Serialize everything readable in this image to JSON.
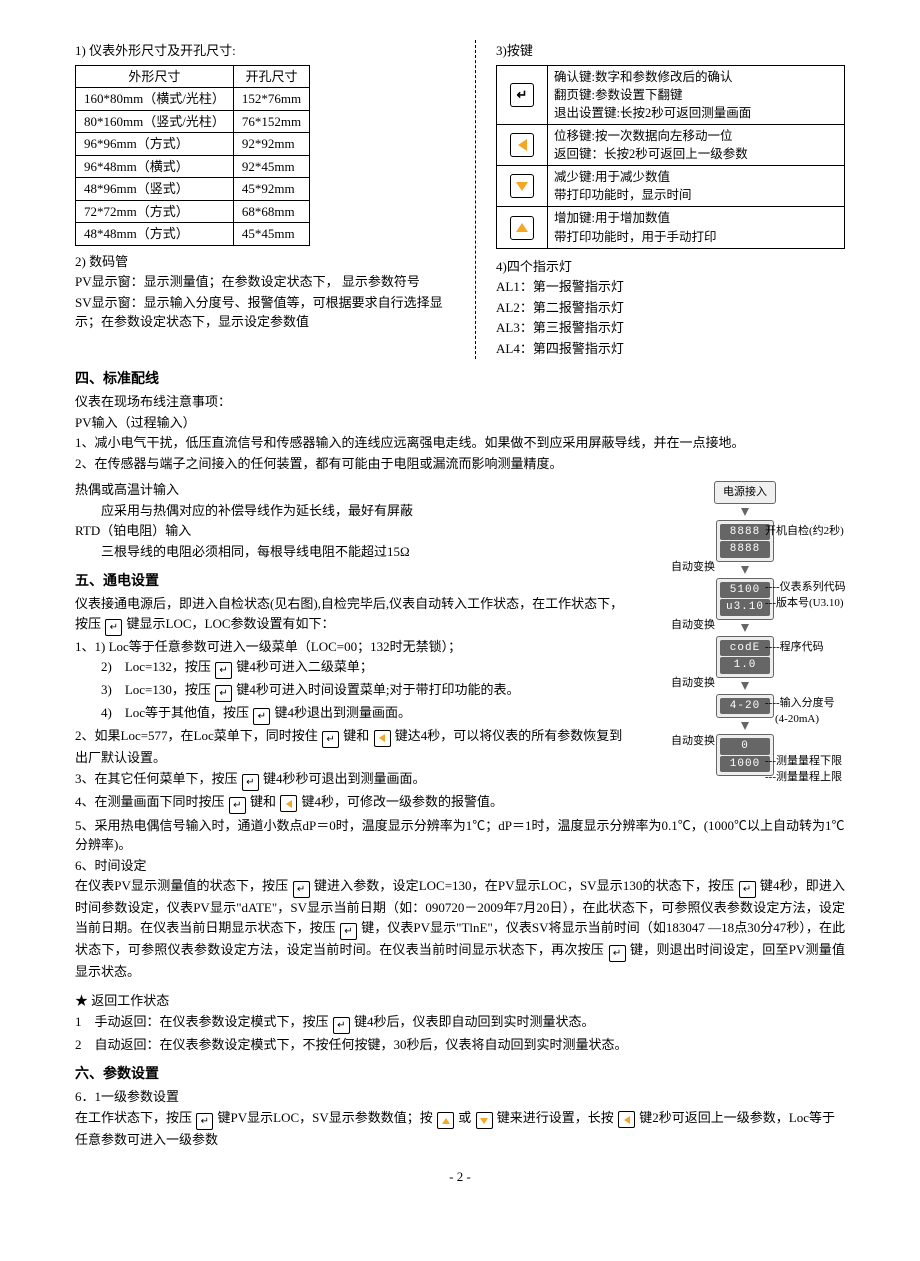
{
  "section1": {
    "title": "1) 仪表外形尺寸及开孔尺寸:",
    "table": {
      "headers": [
        "外形尺寸",
        "开孔尺寸"
      ],
      "rows": [
        [
          "160*80mm（横式/光柱）",
          "152*76mm"
        ],
        [
          "80*160mm（竖式/光柱）",
          "76*152mm"
        ],
        [
          "96*96mm（方式）",
          "92*92mm"
        ],
        [
          "96*48mm（横式）",
          "92*45mm"
        ],
        [
          "48*96mm（竖式）",
          "45*92mm"
        ],
        [
          "72*72mm（方式）",
          "68*68mm"
        ],
        [
          "48*48mm（方式）",
          "45*45mm"
        ]
      ]
    }
  },
  "section2": {
    "title": "2) 数码管",
    "pv": "PV显示窗：显示测量值；在参数设定状态下， 显示参数符号",
    "sv": "SV显示窗：显示输入分度号、报警值等，可根据要求自行选择显示；在参数设定状态下，显示设定参数值"
  },
  "section3": {
    "title": "3)按键",
    "keys": [
      {
        "icon": "enter",
        "desc": "确认键:数字和参数修改后的确认\n翻页键:参数设置下翻键\n退出设置键:长按2秒可返回测量画面"
      },
      {
        "icon": "left",
        "desc": "位移键:按一次数据向左移动一位\n返回键：长按2秒可返回上一级参数"
      },
      {
        "icon": "down",
        "desc": "减少键:用于减少数值\n带打印功能时，显示时间"
      },
      {
        "icon": "up",
        "desc": "增加键:用于增加数值\n带打印功能时，用于手动打印"
      }
    ]
  },
  "section4": {
    "title": "4)四个指示灯",
    "lines": [
      "AL1：第一报警指示灯",
      "AL2：第二报警指示灯",
      "AL3：第三报警指示灯",
      "AL4：第四报警指示灯"
    ]
  },
  "section5": {
    "title": "四、标准配线",
    "l1": "仪表在现场布线注意事项：",
    "l2": "PV输入（过程输入）",
    "l3": "1、减小电气干扰，低压直流信号和传感器输入的连线应远离强电走线。如果做不到应采用屏蔽导线，并在一点接地。",
    "l4": "2、在传感器与端子之间接入的任何装置，都有可能由于电阻或漏流而影响测量精度。",
    "l5": "热偶或高温计输入",
    "l6": "应采用与热偶对应的补偿导线作为延长线，最好有屏蔽",
    "l7": "RTD（铂电阻）输入",
    "l8": "三根导线的电阻必须相同，每根导线电阻不能超过15Ω"
  },
  "section6": {
    "title": "五、通电设置",
    "p1a": "仪表接通电源后，即进入自检状态(见右图),自检完毕后,仪表自动转入工作状态，在工作状态下，按压 ",
    "p1b": " 键显示LOC，LOC参数设置有如下：",
    "li1": "1、1) Loc等于任意参数可进入一级菜单（LOC=00；132时无禁锁）；",
    "li2a": "2)　Loc=132，按压 ",
    "li2b": " 键4秒可进入二级菜单；",
    "li3a": "3)　Loc=130，按压 ",
    "li3b": " 键4秒可进入时间设置菜单;对于带打印功能的表。",
    "li4a": "4)　Loc等于其他值，按压 ",
    "li4b": " 键4秒退出到测量画面。",
    "p2a": "2、如果Loc=577，在Loc菜单下，同时按住 ",
    "p2mid": " 键和 ",
    "p2b": " 键达4秒，可以将仪表的所有参数恢复到出厂默认设置。",
    "p3a": "3、在其它任何菜单下，按压 ",
    "p3b": " 键4秒秒可退出到测量画面。",
    "p4a": "4、在测量画面下同时按压 ",
    "p4mid": " 键和 ",
    "p4b": " 键4秒，可修改一级参数的报警值。",
    "p5": "5、采用热电偶信号输入时，通道小数点dP＝0时，温度显示分辨率为1℃；dP＝1时，温度显示分辨率为0.1℃，(1000℃以上自动转为1℃分辨率)。",
    "p6h": "6、时间设定",
    "p6a": "在仪表PV显示测量值的状态下，按压 ",
    "p6b": " 键进入参数，设定LOC=130，在PV显示LOC，SV显示130的状态下，按压 ",
    "p6c": " 键4秒，即进入时间参数设定，仪表PV显示\"dATE\"，SV显示当前日期（如：090720－2009年7月20日），在此状态下，可参照仪表参数设定方法，设定当前日期。在仪表当前日期显示状态下，按压 ",
    "p6d": " 键，仪表PV显示\"TlnE\"，仪表SV将显示当前时间（如183047 —18点30分47秒），在此状态下，可参照仪表参数设定方法，设定当前时间。在仪表当前时间显示状态下，再次按压 ",
    "p6e": " 键，则退出时间设定，回至PV测量值显示状态。",
    "starTitle": "★ 返回工作状态",
    "s1a": "1　手动返回：在仪表参数设定模式下，按压 ",
    "s1b": " 键4秒后，仪表即自动回到实时测量状态。",
    "s2": "2　自动返回：在仪表参数设定模式下，不按任何按键，30秒后，仪表将自动回到实时测量状态。"
  },
  "section7": {
    "title": "六、参数设置",
    "sub": "6．1一级参数设置",
    "p1a": "在工作状态下，按压 ",
    "p1b": " 键PV显示LOC，SV显示参数数值；按 ",
    "p1mid": " 或 ",
    "p1c": " 键来进行设置，长按 ",
    "p1d": " 键2秒可返回上一级参数，Loc等于任意参数可进入一级参数"
  },
  "flow": {
    "power": "电源接入",
    "d1": "8888",
    "d1b": "8888",
    "note1r": "开机自检(约2秒)",
    "auto": "自动变换",
    "d2a": "5100",
    "d2b": "u3.10",
    "note2a": "----仪表系列代码",
    "note2b": "---版本号(U3.10)",
    "d3a": "codE",
    "d3b": "1.0",
    "note3": "----程序代码",
    "d4a": "4-20",
    "d4b": "",
    "note4a": "----输入分度号",
    "note4b": "(4-20mA)",
    "d5a": "0",
    "d5b": "1000",
    "note5a": "---测量量程下限",
    "note5b": "---测量量程上限"
  },
  "pageNum": "- 2 -"
}
